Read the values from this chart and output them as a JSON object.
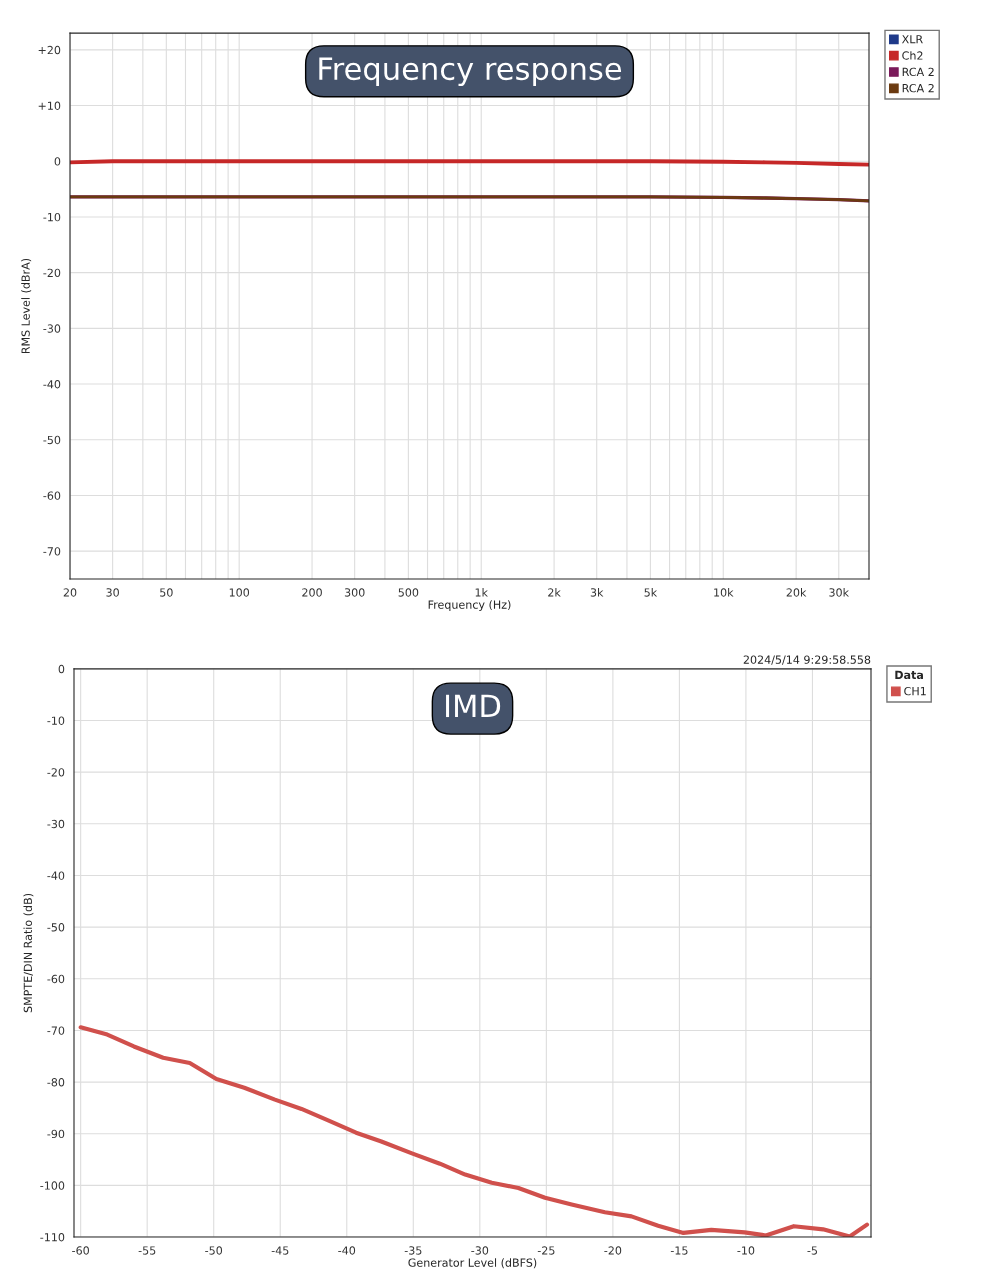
{
  "chart_data": [
    {
      "type": "line",
      "title": "Frequency response",
      "xlabel": "Frequency (Hz)",
      "ylabel": "RMS Level (dBrA)",
      "log": "x",
      "grid": true,
      "legend": "top right",
      "marker": "none",
      "line_style": "solid",
      "x": [
        20,
        30,
        100,
        1000,
        5000,
        10000,
        15000,
        20000,
        30000,
        40000
      ],
      "xlim": [
        20,
        40000
      ],
      "ylim": [
        -75,
        23
      ],
      "xticks": [
        20,
        30,
        {
          "value": 40,
          "label": null
        },
        50,
        {
          "value": 60,
          "label": null
        },
        {
          "value": 70,
          "label": null
        },
        {
          "value": 80,
          "label": null
        },
        {
          "value": 90,
          "label": null
        },
        100,
        200,
        300,
        {
          "value": 400,
          "label": null
        },
        500,
        {
          "value": 600,
          "label": null
        },
        {
          "value": 700,
          "label": null
        },
        {
          "value": 800,
          "label": null
        },
        {
          "value": 900,
          "label": null
        },
        {
          "value": 1000,
          "label": "1k"
        },
        {
          "value": 2000,
          "label": "2k"
        },
        {
          "value": 3000,
          "label": "3k"
        },
        {
          "value": 4000,
          "label": null
        },
        {
          "value": 5000,
          "label": "5k"
        },
        {
          "value": 6000,
          "label": null
        },
        {
          "value": 7000,
          "label": null
        },
        {
          "value": 8000,
          "label": null
        },
        {
          "value": 9000,
          "label": null
        },
        {
          "value": 10000,
          "label": "10k"
        },
        {
          "value": 20000,
          "label": "20k"
        },
        {
          "value": 30000,
          "label": "30k"
        }
      ],
      "yticks": [
        {
          "value": 20,
          "label": "+20"
        },
        {
          "value": 10,
          "label": "+10"
        },
        0,
        -10,
        -20,
        -30,
        -40,
        -50,
        -60,
        -70
      ],
      "series": [
        {
          "name": "XLR",
          "color": "#1f3a8a",
          "values": [
            null,
            null,
            null,
            null,
            null,
            null,
            null,
            null,
            null,
            null
          ]
        },
        {
          "name": "Ch2",
          "color": "#c62828",
          "values": [
            -0.2,
            0,
            0,
            0,
            0,
            -0.1,
            -0.2,
            -0.3,
            -0.5,
            -0.6
          ]
        },
        {
          "name": "RCA 2",
          "color": "#7b1a5a",
          "values": [
            -6.4,
            -6.4,
            -6.4,
            -6.4,
            -6.4,
            -6.5,
            -6.6,
            -6.7,
            -6.9,
            -7.1
          ]
        },
        {
          "name": "RCA 2",
          "color": "#6b3a10",
          "values": [
            -6.4,
            -6.4,
            -6.4,
            -6.4,
            -6.4,
            -6.5,
            -6.6,
            -6.7,
            -6.9,
            -7.1
          ]
        }
      ]
    },
    {
      "type": "line",
      "title": "IMD",
      "xlabel": "Generator Level (dBFS)",
      "ylabel": "SMPTE/DIN Ratio (dB)",
      "grid": true,
      "legend": "top right",
      "legend_title": "Data",
      "marker": "none",
      "line_style": "solid",
      "annotations": [
        "2024/5/14 9:29:58.558"
      ],
      "x": [
        -60,
        -58,
        -56,
        -53.8,
        -51.8,
        -49.8,
        -47.7,
        -45.4,
        -43.4,
        -41.4,
        -39.3,
        -37.4,
        -35.1,
        -33.0,
        -31.1,
        -29.1,
        -27.1,
        -25.1,
        -23.1,
        -20.6,
        -18.6,
        -16.6,
        -14.7,
        -12.6,
        -10.1,
        -8.5,
        -6.4,
        -4.2,
        -2.2,
        -0.9
      ],
      "xlim": [
        -60.5,
        -0.6
      ],
      "ylim": [
        -110,
        0
      ],
      "xticks": [
        -60,
        -55,
        -50,
        -45,
        -40,
        -35,
        -30,
        -25,
        -20,
        -15,
        -10,
        -5
      ],
      "yticks": [
        0,
        -10,
        -20,
        -30,
        -40,
        -50,
        -60,
        -70,
        -80,
        -90,
        -100,
        -110
      ],
      "series": [
        {
          "name": "CH1",
          "color": "#d0504c",
          "values": [
            -69.4,
            -70.8,
            -73.1,
            -75.3,
            -76.3,
            -79.4,
            -81.1,
            -83.4,
            -85.2,
            -87.4,
            -89.8,
            -91.5,
            -93.8,
            -95.8,
            -97.9,
            -99.5,
            -100.5,
            -102.4,
            -103.7,
            -105.2,
            -106.0,
            -107.8,
            -109.2,
            -108.6,
            -109.1,
            -109.7,
            -107.9,
            -108.5,
            -109.9,
            -107.6
          ]
        }
      ]
    }
  ]
}
